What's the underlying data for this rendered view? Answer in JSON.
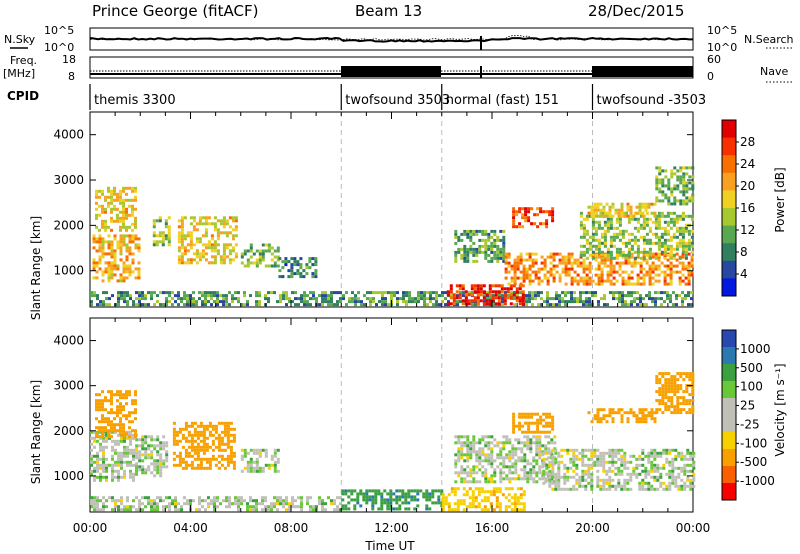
{
  "header": {
    "station": "Prince George (fitACF)",
    "beam": "Beam 13",
    "date": "28/Dec/2015"
  },
  "side_labels": {
    "nsky": "N.Sky",
    "freq_top": "Freq.",
    "freq_unit": "[MHz]",
    "cpid": "CPID",
    "nsearch": "N.Search",
    "nave": "Nave"
  },
  "noise_panel": {
    "left_ticks": [
      "10^5",
      "10^0"
    ],
    "right_ticks": [
      "10^5",
      "10^0"
    ]
  },
  "freq_panel": {
    "left_ticks": [
      "18",
      "8"
    ],
    "right_ticks": [
      "60",
      "0"
    ]
  },
  "cpid_segments": [
    {
      "label": "themis 3300",
      "start_hour": 0,
      "end_hour": 10
    },
    {
      "label": "twofsound 3503",
      "start_hour": 10,
      "end_hour": 14
    },
    {
      "label": "normal (fast) 151",
      "start_hour": 14,
      "end_hour": 20
    },
    {
      "label": "twofsound -3503",
      "start_hour": 20,
      "end_hour": 24
    }
  ],
  "axes": {
    "x_label": "Time UT",
    "x_ticks": [
      "00:00",
      "04:00",
      "08:00",
      "12:00",
      "16:00",
      "20:00",
      "00:00"
    ],
    "x_range": [
      0,
      24
    ],
    "y_label": "Slant Range [km]",
    "y_range": [
      200,
      4500
    ],
    "y_ticks": [
      "1000",
      "2000",
      "3000",
      "4000"
    ],
    "mode_change_hours": [
      10,
      14,
      20
    ]
  },
  "power_colorbar": {
    "label": "Power [dB]",
    "ticks": [
      "28",
      "24",
      "20",
      "16",
      "12",
      "8",
      "4"
    ],
    "colors": [
      "#e00000",
      "#f83000",
      "#f87000",
      "#f8a020",
      "#f0d020",
      "#a8c830",
      "#58a850",
      "#308060",
      "#2848a0",
      "#0018e0"
    ]
  },
  "velocity_colorbar": {
    "label": "Velocity [m s⁻¹]",
    "ticks": [
      "1000",
      "500",
      "100",
      "25",
      "-25",
      "-100",
      "-500",
      "-1000"
    ],
    "colors": [
      "#2848b0",
      "#2c78b0",
      "#3aa040",
      "#68c838",
      "#c0c0b8",
      "#c0c0b8",
      "#f8d000",
      "#f8a000",
      "#f86000",
      "#f80000"
    ]
  },
  "chart_data": {
    "type": "heatmap",
    "title": "Prince George (fitACF)",
    "xlabel": "Time UT",
    "ylabel": "Slant Range [km]",
    "xlim": [
      0,
      24
    ],
    "ylim": [
      200,
      4500
    ],
    "panels": [
      {
        "name": "Power [dB]",
        "regions": [
          {
            "t0": 0.2,
            "t1": 1.8,
            "r0": 1900,
            "r1": 2850,
            "value": 18
          },
          {
            "t0": 0.1,
            "t1": 2.0,
            "r0": 800,
            "r1": 1800,
            "value": 20
          },
          {
            "t0": 2.5,
            "t1": 3.2,
            "r0": 1600,
            "r1": 2200,
            "value": 14
          },
          {
            "t0": 3.5,
            "t1": 5.8,
            "r0": 1200,
            "r1": 2200,
            "value": 18
          },
          {
            "t0": 6.0,
            "t1": 7.5,
            "r0": 1100,
            "r1": 1600,
            "value": 12
          },
          {
            "t0": 7.5,
            "t1": 9.0,
            "r0": 900,
            "r1": 1300,
            "value": 8
          },
          {
            "t0": 0.0,
            "t1": 24.0,
            "r0": 250,
            "r1": 550,
            "value": 10
          },
          {
            "t0": 14.2,
            "t1": 17.3,
            "r0": 280,
            "r1": 700,
            "value": 28
          },
          {
            "t0": 14.5,
            "t1": 16.5,
            "r0": 1200,
            "r1": 1900,
            "value": 10
          },
          {
            "t0": 16.8,
            "t1": 18.4,
            "r0": 2000,
            "r1": 2400,
            "value": 26
          },
          {
            "t0": 16.5,
            "t1": 24.0,
            "r0": 700,
            "r1": 1400,
            "value": 22
          },
          {
            "t0": 19.5,
            "t1": 24.0,
            "r0": 1300,
            "r1": 2300,
            "value": 14
          },
          {
            "t0": 19.8,
            "t1": 22.5,
            "r0": 2200,
            "r1": 2500,
            "value": 18
          },
          {
            "t0": 22.5,
            "t1": 24.0,
            "r0": 2500,
            "r1": 3300,
            "value": 12
          }
        ]
      },
      {
        "name": "Velocity [m s⁻¹]",
        "regions": [
          {
            "t0": 0.0,
            "t1": 1.8,
            "r0": 900,
            "r1": 2000,
            "value": 0
          },
          {
            "t0": 0.2,
            "t1": 1.8,
            "r0": 1900,
            "r1": 2900,
            "value": -150
          },
          {
            "t0": 1.8,
            "t1": 3.0,
            "r0": 1000,
            "r1": 1900,
            "value": 0
          },
          {
            "t0": 3.3,
            "t1": 5.8,
            "r0": 1200,
            "r1": 2200,
            "value": -200
          },
          {
            "t0": 6.0,
            "t1": 7.5,
            "r0": 1100,
            "r1": 1600,
            "value": 0
          },
          {
            "t0": 0.0,
            "t1": 10.0,
            "r0": 250,
            "r1": 550,
            "value": 0
          },
          {
            "t0": 10.0,
            "t1": 14.0,
            "r0": 250,
            "r1": 700,
            "value": 80
          },
          {
            "t0": 14.0,
            "t1": 17.3,
            "r0": 280,
            "r1": 750,
            "value": -80
          },
          {
            "t0": 14.5,
            "t1": 18.5,
            "r0": 900,
            "r1": 1900,
            "value": 0
          },
          {
            "t0": 16.8,
            "t1": 18.4,
            "r0": 2000,
            "r1": 2400,
            "value": -200
          },
          {
            "t0": 18.0,
            "t1": 24.0,
            "r0": 700,
            "r1": 1600,
            "value": 0
          },
          {
            "t0": 19.8,
            "t1": 22.5,
            "r0": 2200,
            "r1": 2500,
            "value": -200
          },
          {
            "t0": 22.5,
            "t1": 24.0,
            "r0": 2400,
            "r1": 3300,
            "value": -300
          }
        ]
      }
    ]
  }
}
